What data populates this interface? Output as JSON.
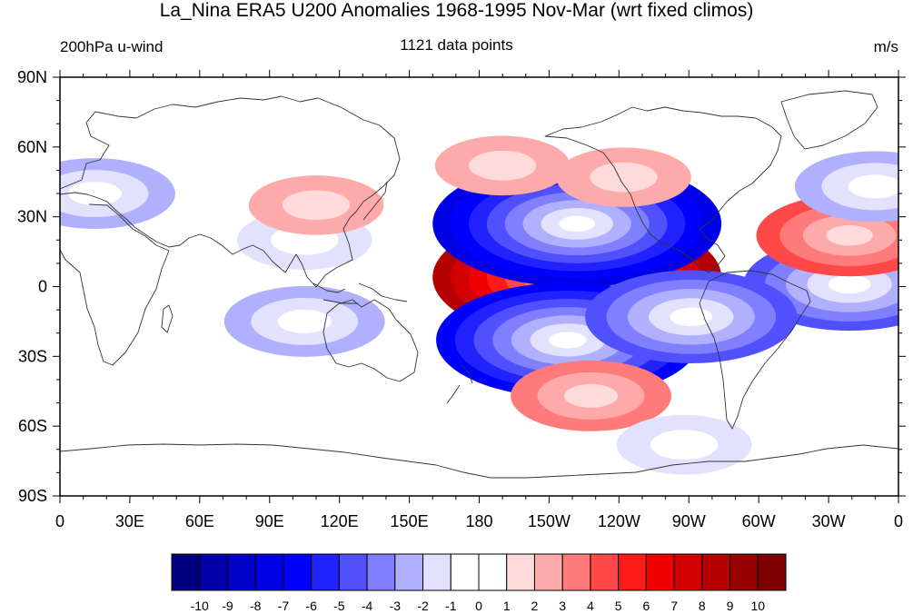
{
  "title": "La_Nina ERA5 U200 Anomalies 1968-1995 Nov-Mar (wrt fixed climos)",
  "subtitle_left": "200hPa u-wind",
  "subtitle_center": "1121 data points",
  "subtitle_right": "m/s",
  "map": {
    "projection": "cylindrical-equidistant",
    "lon_range": [
      0,
      360
    ],
    "lat_range": [
      -90,
      90
    ],
    "lon_ticks": [
      "0",
      "30E",
      "60E",
      "90E",
      "120E",
      "150E",
      "180",
      "150W",
      "120W",
      "90W",
      "60W",
      "30W",
      "0"
    ],
    "lat_ticks": [
      "90N",
      "60N",
      "30N",
      "0",
      "30S",
      "60S",
      "90S"
    ]
  },
  "colorbar": {
    "labels": [
      "-10",
      "-9",
      "-8",
      "-7",
      "-6",
      "-5",
      "-4",
      "-3",
      "-2",
      "-1",
      "0",
      "1",
      "2",
      "3",
      "4",
      "5",
      "6",
      "7",
      "8",
      "9",
      "10"
    ],
    "colors": [
      "#000080",
      "#0000A8",
      "#0000C8",
      "#0000E6",
      "#0000FF",
      "#2222FF",
      "#5050FF",
      "#8080FF",
      "#B0B0FF",
      "#E2E2FF",
      "#FFFFFF",
      "#FFFFFF",
      "#FFDADA",
      "#FFAAAA",
      "#FF7A7A",
      "#FF4848",
      "#FF1A1A",
      "#F00000",
      "#D20000",
      "#B40000",
      "#960000",
      "#800000"
    ]
  },
  "chart_data": {
    "type": "heatmap",
    "variable": "200hPa u-wind",
    "units": "m/s",
    "anomalies": [
      {
        "lon": 222,
        "lat": 4,
        "value": 8
      },
      {
        "lon": 222,
        "lat": 27,
        "value": -8
      },
      {
        "lon": 218,
        "lat": -23,
        "value": -7
      },
      {
        "lon": 339,
        "lat": 1,
        "value": -5
      },
      {
        "lon": 271,
        "lat": -13,
        "value": -5
      },
      {
        "lon": 339,
        "lat": 22,
        "value": 4
      },
      {
        "lon": 228,
        "lat": -47,
        "value": 3
      },
      {
        "lon": 242,
        "lat": 47,
        "value": 2
      },
      {
        "lon": 190,
        "lat": 52,
        "value": 2
      },
      {
        "lon": 105,
        "lat": 20,
        "value": -2
      },
      {
        "lon": 15,
        "lat": 40,
        "value": -3
      },
      {
        "lon": 350,
        "lat": 43,
        "value": -3
      },
      {
        "lon": 105,
        "lat": -15,
        "value": -3
      },
      {
        "lon": 268,
        "lat": -68,
        "value": -2
      },
      {
        "lon": 110,
        "lat": 35,
        "value": 2
      }
    ]
  }
}
